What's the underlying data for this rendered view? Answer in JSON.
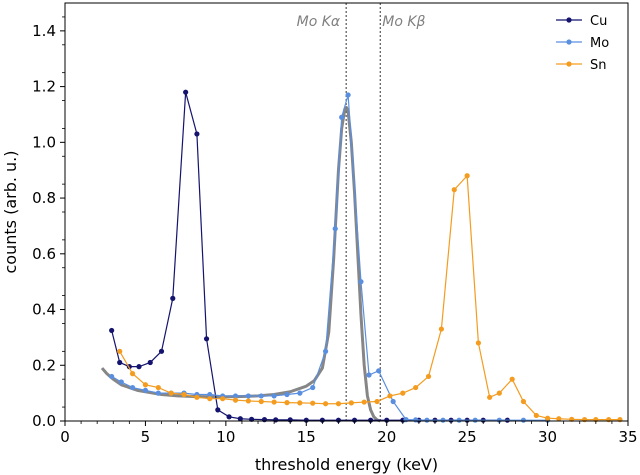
{
  "chart_data": {
    "type": "line",
    "xlabel": "threshold energy (keV)",
    "ylabel": "counts (arb. u.)",
    "xlim": [
      0,
      35
    ],
    "ylim": [
      0,
      1.5
    ],
    "xticks": [
      "0",
      "5",
      "10",
      "15",
      "20",
      "25",
      "30",
      "35"
    ],
    "yticks": [
      "0.0",
      "0.2",
      "0.4",
      "0.6",
      "0.8",
      "1.0",
      "1.2",
      "1.4"
    ],
    "legend_position": "top-right",
    "annotations": [
      {
        "label": "Mo Kα",
        "x": 17.48
      },
      {
        "label": "Mo Kβ",
        "x": 19.6
      }
    ],
    "series": [
      {
        "name": "Cu",
        "color": "#14146e",
        "x": [
          2.9,
          3.4,
          4.0,
          4.6,
          5.3,
          6.0,
          6.7,
          7.5,
          8.2,
          8.8,
          9.5,
          10.2,
          10.9,
          11.6,
          12.4,
          13.1,
          14.0,
          15.0,
          16.0,
          17.0,
          18.0,
          19.0,
          20.0,
          21.0,
          22.0,
          23.0,
          24.0,
          25.0,
          26.0,
          27.5
        ],
        "y": [
          0.325,
          0.21,
          0.195,
          0.195,
          0.21,
          0.25,
          0.44,
          1.18,
          1.03,
          0.295,
          0.04,
          0.015,
          0.008,
          0.006,
          0.005,
          0.004,
          0.004,
          0.003,
          0.003,
          0.003,
          0.003,
          0.003,
          0.003,
          0.003,
          0.003,
          0.003,
          0.003,
          0.003,
          0.003,
          0.003
        ]
      },
      {
        "name": "Mo",
        "color": "#5a8fe0",
        "x": [
          2.9,
          3.5,
          4.2,
          5.0,
          5.8,
          6.6,
          7.4,
          8.2,
          9.0,
          9.8,
          10.6,
          11.4,
          12.2,
          13.0,
          13.8,
          14.6,
          15.4,
          16.2,
          16.8,
          17.2,
          17.6,
          18.4,
          18.9,
          19.5,
          20.4,
          21.2,
          21.8,
          22.5,
          23.5,
          24.5,
          25.5,
          27.0,
          28.5,
          30.0
        ],
        "y": [
          0.16,
          0.14,
          0.12,
          0.11,
          0.1,
          0.1,
          0.1,
          0.095,
          0.095,
          0.09,
          0.09,
          0.09,
          0.09,
          0.09,
          0.095,
          0.1,
          0.12,
          0.25,
          0.69,
          1.09,
          1.17,
          0.5,
          0.165,
          0.18,
          0.07,
          0.005,
          0.004,
          0.003,
          0.003,
          0.003,
          0.003,
          0.003,
          0.003,
          0.003
        ]
      },
      {
        "name": "Sn",
        "color": "#f39c20",
        "x": [
          3.4,
          4.2,
          5.0,
          5.8,
          6.6,
          7.4,
          8.2,
          9.0,
          9.8,
          10.6,
          11.4,
          12.2,
          13.0,
          13.8,
          14.6,
          15.4,
          16.2,
          17.0,
          17.8,
          18.6,
          19.4,
          20.2,
          21.0,
          21.8,
          22.6,
          23.4,
          24.2,
          25.0,
          25.7,
          26.4,
          27.0,
          27.8,
          28.5,
          29.3,
          30.0,
          30.7,
          31.5,
          32.3,
          33.0,
          33.8,
          34.5
        ],
        "y": [
          0.25,
          0.17,
          0.13,
          0.12,
          0.1,
          0.095,
          0.085,
          0.08,
          0.08,
          0.075,
          0.072,
          0.07,
          0.068,
          0.066,
          0.065,
          0.064,
          0.062,
          0.062,
          0.065,
          0.068,
          0.07,
          0.09,
          0.1,
          0.12,
          0.16,
          0.33,
          0.83,
          0.88,
          0.28,
          0.085,
          0.1,
          0.15,
          0.07,
          0.02,
          0.01,
          0.008,
          0.006,
          0.005,
          0.005,
          0.005,
          0.005
        ]
      }
    ],
    "fit_curve": {
      "color": "#808080",
      "x": [
        2.3,
        2.6,
        3.0,
        3.5,
        4.0,
        4.5,
        5.0,
        5.5,
        6.0,
        7.0,
        8.0,
        9.0,
        10.0,
        11.0,
        12.0,
        13.0,
        14.0,
        15.0,
        15.5,
        16.0,
        16.4,
        16.7,
        17.0,
        17.2,
        17.4,
        17.5,
        17.6,
        17.8,
        18.0,
        18.2,
        18.4,
        18.6,
        18.8,
        19.0,
        19.2,
        19.4,
        19.6
      ],
      "y": [
        0.19,
        0.17,
        0.15,
        0.13,
        0.12,
        0.11,
        0.105,
        0.1,
        0.095,
        0.09,
        0.088,
        0.087,
        0.087,
        0.088,
        0.09,
        0.095,
        0.105,
        0.125,
        0.145,
        0.19,
        0.32,
        0.58,
        0.9,
        1.05,
        1.12,
        1.125,
        1.11,
        1.0,
        0.82,
        0.6,
        0.38,
        0.2,
        0.09,
        0.04,
        0.015,
        0.004,
        0.0
      ]
    }
  }
}
